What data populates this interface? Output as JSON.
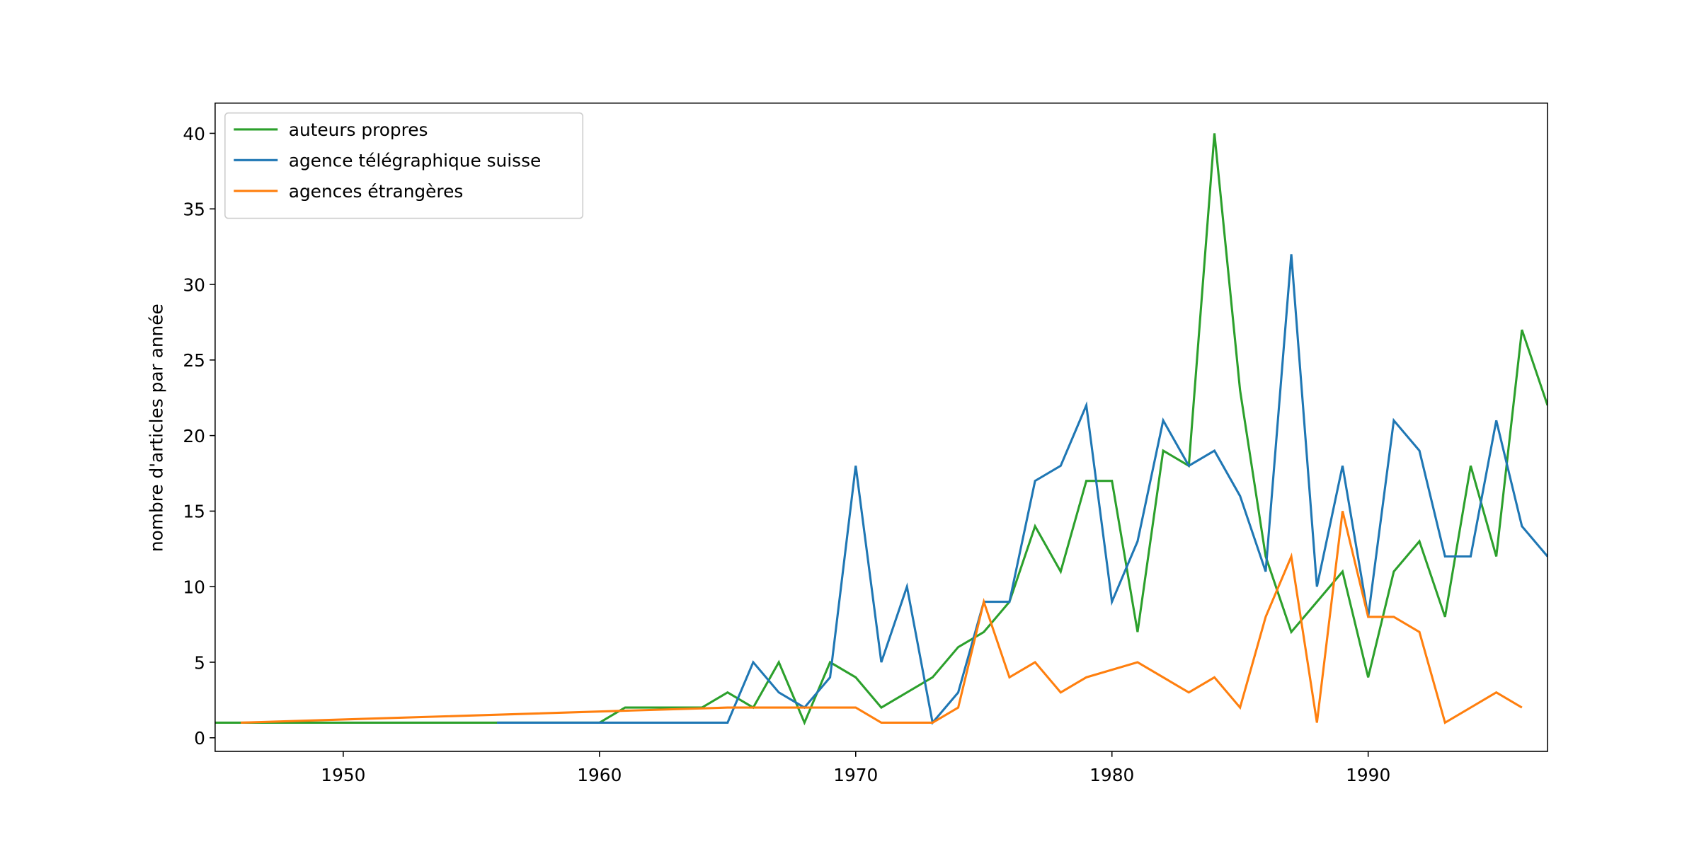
{
  "chart_data": {
    "type": "line",
    "y_label": "nombre d'articles par année",
    "xlim": [
      1945,
      1997
    ],
    "xticks": [
      1950,
      1960,
      1970,
      1980,
      1990
    ],
    "ylim": [
      -0.9,
      42
    ],
    "yticks": [
      0,
      5,
      10,
      15,
      20,
      25,
      30,
      35,
      40
    ],
    "legend": "upper left",
    "grid": false,
    "series": [
      {
        "name": "auteurs propres",
        "color": "#2ca02c",
        "x": [
          1945,
          1960,
          1961,
          1964,
          1965,
          1966,
          1967,
          1968,
          1969,
          1970,
          1971,
          1972,
          1973,
          1974,
          1975,
          1976,
          1977,
          1978,
          1979,
          1980,
          1981,
          1982,
          1983,
          1984,
          1985,
          1986,
          1987,
          1988,
          1989,
          1990,
          1991,
          1992,
          1993,
          1994,
          1995,
          1996,
          1997
        ],
        "values": [
          1,
          1,
          2,
          2,
          3,
          2,
          5,
          1,
          5,
          4,
          2,
          3,
          4,
          6,
          7,
          9,
          14,
          11,
          17,
          17,
          7,
          19,
          18,
          40,
          23,
          12,
          7,
          9,
          11,
          4,
          11,
          13,
          8,
          18,
          12,
          27,
          22
        ]
      },
      {
        "name": "agence télégraphique suisse",
        "color": "#1f77b4",
        "x": [
          1956,
          1960,
          1965,
          1966,
          1967,
          1968,
          1969,
          1970,
          1971,
          1972,
          1973,
          1974,
          1975,
          1976,
          1977,
          1978,
          1979,
          1980,
          1981,
          1982,
          1983,
          1984,
          1985,
          1986,
          1987,
          1988,
          1989,
          1990,
          1991,
          1992,
          1993,
          1994,
          1995,
          1996,
          1997
        ],
        "values": [
          1,
          1,
          1,
          5,
          3,
          2,
          4,
          18,
          5,
          10,
          1,
          3,
          9,
          9,
          17,
          18,
          22,
          9,
          13,
          21,
          18,
          19,
          16,
          11,
          32,
          10,
          18,
          8,
          21,
          19,
          12,
          12,
          21,
          14,
          12
        ]
      },
      {
        "name": "agences étrangères",
        "color": "#ff7f0e",
        "x": [
          1946,
          1965,
          1966,
          1967,
          1968,
          1969,
          1970,
          1971,
          1972,
          1973,
          1974,
          1975,
          1976,
          1977,
          1978,
          1979,
          1981,
          1982,
          1983,
          1984,
          1985,
          1986,
          1987,
          1988,
          1989,
          1990,
          1991,
          1992,
          1993,
          1994,
          1995,
          1996
        ],
        "values": [
          1,
          2,
          2,
          2,
          2,
          2,
          2,
          1,
          1,
          1,
          2,
          9,
          4,
          5,
          3,
          4,
          5,
          4,
          3,
          4,
          2,
          8,
          12,
          1,
          15,
          8,
          8,
          7,
          1,
          2,
          3,
          2
        ]
      }
    ]
  }
}
